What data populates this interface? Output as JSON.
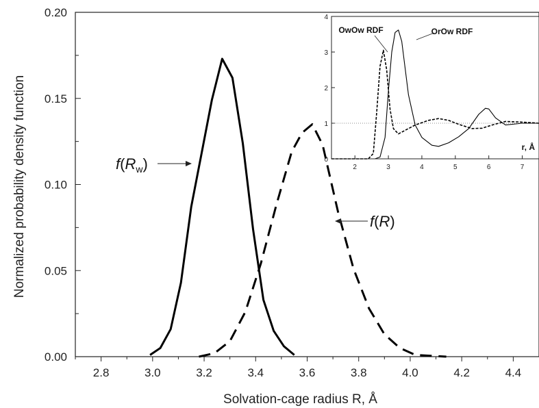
{
  "chart_data": [
    {
      "type": "line",
      "title": "",
      "xlabel": "Solvation-cage radius R, Å",
      "ylabel": "Normalized probability density function",
      "xlim": [
        2.7,
        4.5
      ],
      "ylim": [
        0,
        0.2
      ],
      "xticks": [
        "2.8",
        "3.0",
        "3.2",
        "3.4",
        "3.6",
        "3.8",
        "4.0",
        "4.2",
        "4.4"
      ],
      "yticks": [
        "0.00",
        "0.05",
        "0.10",
        "0.15",
        "0.20"
      ],
      "grid": false,
      "legend": "none",
      "series": [
        {
          "style": "solid",
          "x": [
            2.99,
            3.03,
            3.07,
            3.11,
            3.15,
            3.19,
            3.23,
            3.27,
            3.31,
            3.35,
            3.39,
            3.43,
            3.47,
            3.51,
            3.55
          ],
          "y": [
            0.001,
            0.005,
            0.016,
            0.043,
            0.087,
            0.118,
            0.149,
            0.173,
            0.162,
            0.124,
            0.074,
            0.033,
            0.015,
            0.006,
            0.001
          ]
        },
        {
          "style": "dashed",
          "x": [
            3.18,
            3.24,
            3.3,
            3.36,
            3.42,
            3.48,
            3.54,
            3.58,
            3.62,
            3.66,
            3.72,
            3.78,
            3.84,
            3.9,
            3.96,
            4.02,
            4.08,
            4.14
          ],
          "y": [
            0.0,
            0.002,
            0.009,
            0.026,
            0.054,
            0.088,
            0.119,
            0.13,
            0.135,
            0.123,
            0.084,
            0.051,
            0.028,
            0.013,
            0.005,
            0.001,
            0.0005,
            0.0
          ]
        }
      ],
      "annotations": [
        {
          "base": "f(",
          "var": "R",
          "sub": "w",
          "close": ")"
        },
        {
          "base": "f(",
          "var": "R",
          "sub": "",
          "close": ")"
        }
      ]
    },
    {
      "type": "line",
      "title": "",
      "xlabel": "r, Å",
      "ylabel": "",
      "xlim": [
        1.3,
        7.5
      ],
      "ylim": [
        0,
        4
      ],
      "xticks": [
        "2",
        "3",
        "4",
        "5",
        "6",
        "7"
      ],
      "yticks": [
        "0",
        "1",
        "2",
        "3",
        "4"
      ],
      "reference_line": 1,
      "series": [
        {
          "name": "OwOw RDF",
          "style": "dashed",
          "x": [
            1.3,
            2.4,
            2.55,
            2.65,
            2.75,
            2.85,
            2.95,
            3.05,
            3.15,
            3.3,
            3.5,
            3.8,
            4.2,
            4.5,
            4.8,
            5.1,
            5.5,
            5.8,
            6.1,
            6.5,
            7.0,
            7.5
          ],
          "y": [
            0.0,
            0.0,
            0.15,
            1.3,
            2.6,
            3.05,
            2.5,
            1.4,
            0.85,
            0.7,
            0.8,
            0.95,
            1.08,
            1.13,
            1.08,
            0.97,
            0.85,
            0.86,
            0.95,
            1.05,
            1.03,
            1.0
          ]
        },
        {
          "name": "OrOw RDF",
          "style": "solid",
          "x": [
            1.3,
            2.6,
            2.75,
            2.9,
            3.0,
            3.1,
            3.2,
            3.3,
            3.4,
            3.5,
            3.6,
            3.8,
            4.0,
            4.3,
            4.5,
            4.8,
            5.1,
            5.4,
            5.7,
            5.9,
            6.0,
            6.2,
            6.5,
            7.0,
            7.5
          ],
          "y": [
            0.0,
            0.0,
            0.05,
            0.6,
            1.9,
            3.0,
            3.55,
            3.62,
            3.3,
            2.55,
            1.8,
            0.95,
            0.6,
            0.38,
            0.35,
            0.45,
            0.62,
            0.85,
            1.25,
            1.42,
            1.4,
            1.15,
            0.95,
            1.0,
            1.0
          ]
        }
      ]
    }
  ]
}
